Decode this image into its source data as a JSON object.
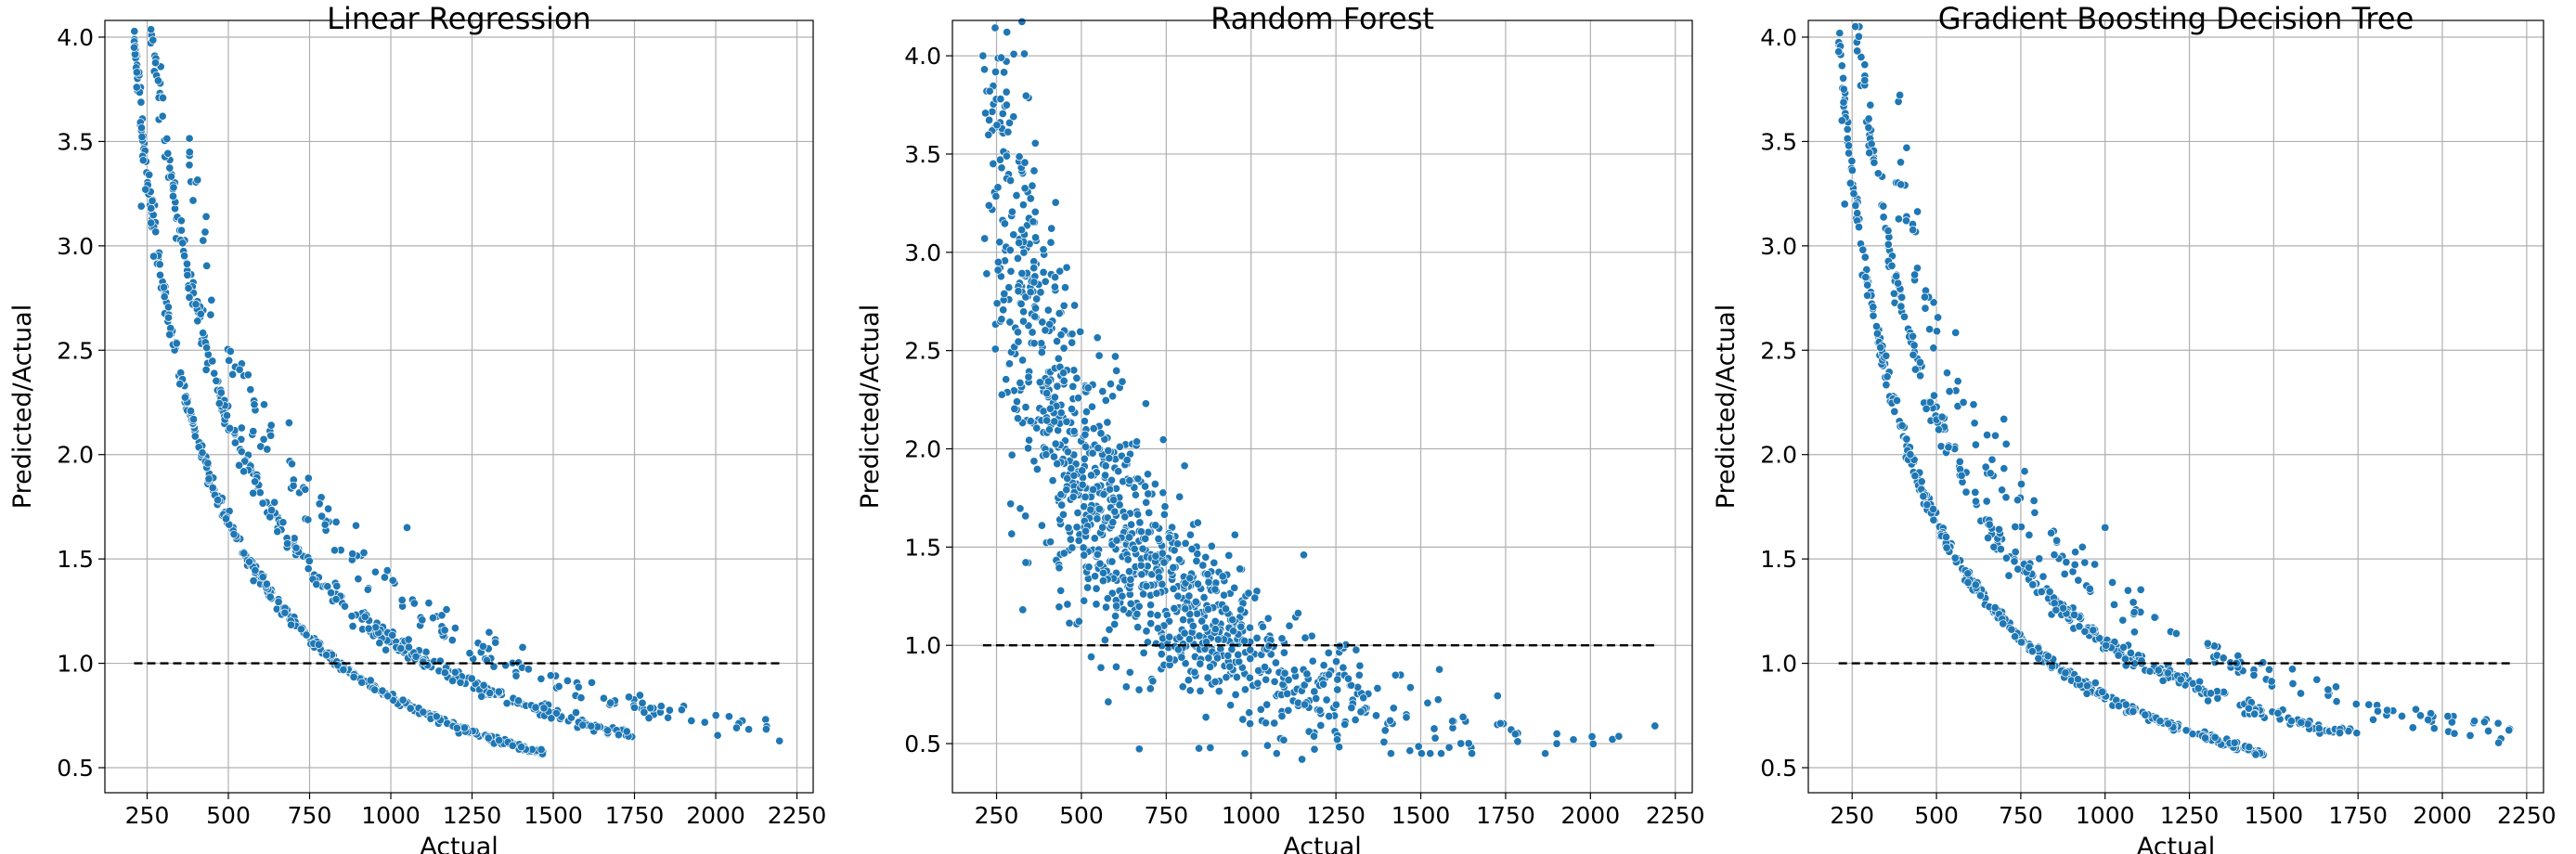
{
  "chart_data": [
    {
      "type": "scatter",
      "title": "Linear Regression",
      "xlabel": "Actual",
      "ylabel": "Predicted/Actual",
      "xlim": [
        120,
        2300
      ],
      "ylim": [
        0.38,
        4.08
      ],
      "xticks": [
        250,
        500,
        750,
        1000,
        1250,
        1500,
        1750,
        2000,
        2250
      ],
      "yticks": [
        0.5,
        1.0,
        1.5,
        2.0,
        2.5,
        3.0,
        3.5,
        4.0
      ],
      "xtick_labels": [
        "250",
        "500",
        "750",
        "1000",
        "1250",
        "1500",
        "1750",
        "2000",
        "2250"
      ],
      "ytick_labels": [
        "0.5",
        "1.0",
        "1.5",
        "2.0",
        "2.5",
        "3.0",
        "3.5",
        "4.0"
      ],
      "grid": true,
      "reference_line": {
        "y": 1.0,
        "x": [
          210,
          2200
        ],
        "style": "dashed"
      },
      "marker_color": "#1f77b4",
      "bands": [
        {
          "k": 840,
          "c": 0.0,
          "x": [
            210,
            1470
          ],
          "jitter": 0.012,
          "n": 420
        },
        {
          "k": 1060,
          "c": 0.05,
          "x": [
            240,
            1750
          ],
          "jitter": 0.02,
          "n": 380
        },
        {
          "k": 1260,
          "c": 0.09,
          "x": [
            380,
            2200
          ],
          "jitter": 0.04,
          "n": 160
        }
      ],
      "points": [
        [
          210,
          3.95
        ],
        [
          218,
          3.76
        ],
        [
          232,
          3.19
        ],
        [
          236,
          3.43
        ],
        [
          238,
          3.41
        ],
        [
          245,
          3.27
        ],
        [
          262,
          3.11
        ],
        [
          270,
          2.95
        ],
        [
          290,
          2.86
        ],
        [
          390,
          2.72
        ],
        [
          400,
          2.72
        ],
        [
          405,
          2.64
        ],
        [
          580,
          2.24
        ],
        [
          610,
          2.24
        ],
        [
          1050,
          1.65
        ]
      ]
    },
    {
      "type": "scatter",
      "title": "Random Forest",
      "xlabel": "Actual",
      "ylabel": "Predicted/Actual",
      "xlim": [
        120,
        2300
      ],
      "ylim": [
        0.25,
        4.18
      ],
      "xticks": [
        250,
        500,
        750,
        1000,
        1250,
        1500,
        1750,
        2000,
        2250
      ],
      "yticks": [
        0.5,
        1.0,
        1.5,
        2.0,
        2.5,
        3.0,
        3.5,
        4.0
      ],
      "xtick_labels": [
        "250",
        "500",
        "750",
        "1000",
        "1250",
        "1500",
        "1750",
        "2000",
        "2250"
      ],
      "ytick_labels": [
        "0.5",
        "1.0",
        "1.5",
        "2.0",
        "2.5",
        "3.0",
        "3.5",
        "4.0"
      ],
      "grid": true,
      "reference_line": {
        "y": 1.0,
        "x": [
          210,
          2200
        ],
        "style": "dashed"
      },
      "marker_color": "#1f77b4",
      "cloud": {
        "k": 870,
        "c": 0.0,
        "x": [
          210,
          2200
        ],
        "spread": 0.2,
        "n": 1150
      },
      "points": [
        [
          210,
          4.0
        ],
        [
          215,
          3.07
        ],
        [
          230,
          3.82
        ],
        [
          240,
          3.45
        ],
        [
          255,
          2.95
        ],
        [
          265,
          3.43
        ],
        [
          280,
          3.49
        ],
        [
          300,
          3.69
        ],
        [
          300,
          3.09
        ],
        [
          310,
          2.24
        ],
        [
          360,
          2.92
        ],
        [
          410,
          3.05
        ],
        [
          440,
          2.58
        ],
        [
          480,
          2.73
        ],
        [
          520,
          2.31
        ],
        [
          600,
          2.47
        ],
        [
          690,
          2.23
        ],
        [
          1950,
          0.52
        ],
        [
          2190,
          0.59
        ],
        [
          1150,
          0.42
        ],
        [
          1560,
          0.45
        ]
      ]
    },
    {
      "type": "scatter",
      "title": "Gradient Boosting Decision Tree",
      "xlabel": "Actual",
      "ylabel": "Predicted/Actual",
      "xlim": [
        120,
        2300
      ],
      "ylim": [
        0.38,
        4.08
      ],
      "xticks": [
        250,
        500,
        750,
        1000,
        1250,
        1500,
        1750,
        2000,
        2250
      ],
      "yticks": [
        0.5,
        1.0,
        1.5,
        2.0,
        2.5,
        3.0,
        3.5,
        4.0
      ],
      "xtick_labels": [
        "250",
        "500",
        "750",
        "1000",
        "1250",
        "1500",
        "1750",
        "2000",
        "2250"
      ],
      "ytick_labels": [
        "0.5",
        "1.0",
        "1.5",
        "2.0",
        "2.5",
        "3.0",
        "3.5",
        "4.0"
      ],
      "grid": true,
      "reference_line": {
        "y": 1.0,
        "x": [
          210,
          2200
        ],
        "style": "dashed"
      },
      "marker_color": "#1f77b4",
      "bands": [
        {
          "k": 840,
          "c": 0.0,
          "x": [
            210,
            1470
          ],
          "jitter": 0.014,
          "n": 420
        },
        {
          "k": 1060,
          "c": 0.05,
          "x": [
            240,
            1750
          ],
          "jitter": 0.022,
          "n": 380
        },
        {
          "k": 1260,
          "c": 0.09,
          "x": [
            380,
            2200
          ],
          "jitter": 0.045,
          "n": 160
        }
      ],
      "points": [
        [
          210,
          3.93
        ],
        [
          220,
          3.6
        ],
        [
          228,
          3.2
        ],
        [
          240,
          3.48
        ],
        [
          245,
          3.3
        ],
        [
          255,
          3.25
        ],
        [
          265,
          3.12
        ],
        [
          270,
          3.09
        ],
        [
          280,
          2.86
        ],
        [
          290,
          2.85
        ],
        [
          395,
          2.71
        ],
        [
          405,
          2.66
        ],
        [
          580,
          2.25
        ],
        [
          610,
          2.24
        ],
        [
          700,
          2.17
        ],
        [
          1000,
          1.65
        ]
      ]
    }
  ]
}
